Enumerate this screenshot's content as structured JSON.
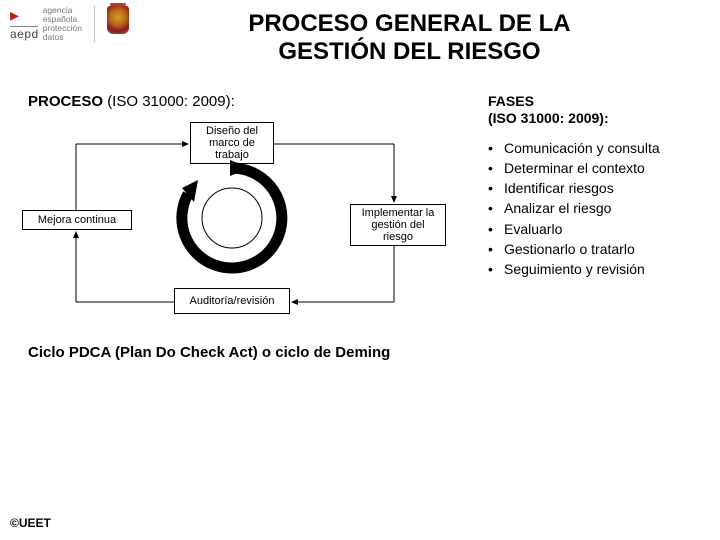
{
  "logo": {
    "acronym": "aepd",
    "line1": "agencia",
    "line2": "española",
    "line3": "protección",
    "line4": "datos"
  },
  "title_line1": "PROCESO GENERAL DE LA",
  "title_line2": "GESTIÓN DEL RIESGO",
  "process_title_prefix": "PROCESO ",
  "process_title_paren": "(ISO 31000: 2009):",
  "diagram": {
    "type": "flowchart",
    "nodes": {
      "top": "Diseño del marco de trabajo",
      "right": "Implementar la gestión del riesgo",
      "bottom": "Auditoría/revisión",
      "left": "Mejora continua"
    },
    "node_border_color": "#000000",
    "node_bg_color": "#ffffff",
    "node_fontsize": 11,
    "circle": {
      "stroke": "#000000",
      "stroke_width": 6,
      "outer_r": 52,
      "inner_r": 30
    },
    "connector_color": "#000000"
  },
  "pdca_caption": "Ciclo PDCA (Plan Do Check Act) o ciclo de Deming",
  "phases": {
    "heading_line1": "FASES",
    "heading_line2": "(ISO 31000: 2009):",
    "items": [
      "Comunicación y consulta",
      "Determinar el contexto",
      "Identificar riesgos",
      "Analizar el riesgo",
      "Evaluarlo",
      "Gestionarlo o tratarlo",
      "Seguimiento y revisión"
    ],
    "bullet": "•",
    "fontsize": 14
  },
  "footer": "©UEET",
  "colors": {
    "background": "#ffffff",
    "text": "#000000",
    "logo_accent": "#c02020",
    "logo_text": "#777777"
  }
}
